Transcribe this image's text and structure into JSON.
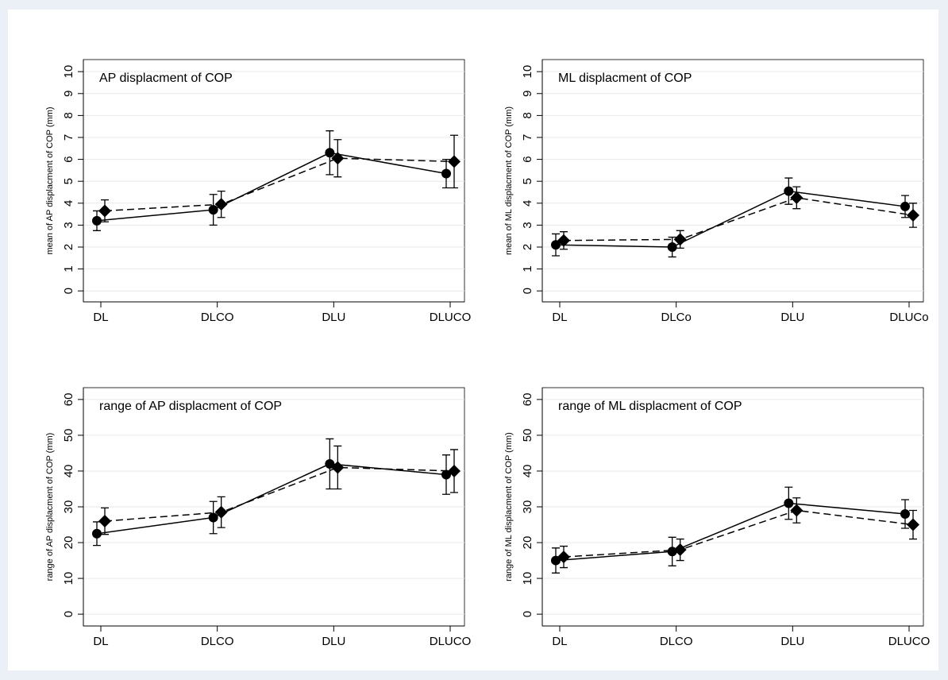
{
  "chart_data": [
    {
      "type": "line",
      "title": "AP displacment of COP",
      "y_label": "mean of  AP displacment of COP (mm)",
      "categories": [
        "DL",
        "DLCO",
        "DLU",
        "DLUCO"
      ],
      "series": [
        {
          "color": "#000000",
          "marker": "circle",
          "dashed": false,
          "values": [
            3.2,
            3.7,
            6.3,
            5.35
          ],
          "errors": [
            0.45,
            0.7,
            1.0,
            0.65
          ]
        },
        {
          "color": "#000000",
          "marker": "diamond",
          "dashed": true,
          "values": [
            3.65,
            3.95,
            6.05,
            5.9
          ],
          "errors": [
            0.5,
            0.6,
            0.85,
            1.2
          ]
        }
      ],
      "ylim": [
        -0.5,
        10.55
      ],
      "yticks": [
        0,
        1,
        2,
        3,
        4,
        5,
        6,
        7,
        8,
        9,
        10
      ],
      "grid": true
    },
    {
      "type": "line",
      "title": "ML displacment of COP",
      "y_label": "mean of  ML displacment of COP (mm)",
      "categories": [
        "DL",
        "DLCo",
        "DLU",
        "DLUCo"
      ],
      "series": [
        {
          "color": "#000000",
          "marker": "circle",
          "dashed": false,
          "values": [
            2.1,
            2.0,
            4.55,
            3.85
          ],
          "errors": [
            0.5,
            0.45,
            0.6,
            0.5
          ]
        },
        {
          "color": "#000000",
          "marker": "diamond",
          "dashed": true,
          "values": [
            2.3,
            2.35,
            4.25,
            3.45
          ],
          "errors": [
            0.4,
            0.4,
            0.5,
            0.55
          ]
        }
      ],
      "ylim": [
        -0.5,
        10.55
      ],
      "yticks": [
        0,
        1,
        2,
        3,
        4,
        5,
        6,
        7,
        8,
        9,
        10
      ],
      "grid": true
    },
    {
      "type": "line",
      "title": "range of  AP displacment of COP",
      "y_label": "range of  AP displacment of COP (mm)",
      "categories": [
        "DL",
        "DLCO",
        "DLU",
        "DLUCO"
      ],
      "series": [
        {
          "color": "#000000",
          "marker": "circle",
          "dashed": false,
          "values": [
            22.5,
            27,
            42,
            39
          ],
          "errors": [
            3.3,
            4.5,
            7,
            5.5
          ]
        },
        {
          "color": "#000000",
          "marker": "diamond",
          "dashed": true,
          "values": [
            26,
            28.5,
            41,
            40
          ],
          "errors": [
            3.7,
            4.3,
            6,
            6
          ]
        }
      ],
      "ylim": [
        -3.3,
        63.3
      ],
      "yticks": [
        0,
        10,
        20,
        30,
        40,
        50,
        60
      ],
      "grid": true
    },
    {
      "type": "line",
      "title": "range of  ML displacment of COP",
      "y_label": "range of  ML displacment of COP (mm)",
      "categories": [
        "DL",
        "DLCO",
        "DLU",
        "DLUCO"
      ],
      "series": [
        {
          "color": "#000000",
          "marker": "circle",
          "dashed": false,
          "values": [
            15,
            17.5,
            31,
            28
          ],
          "errors": [
            3.5,
            4,
            4.5,
            4
          ]
        },
        {
          "color": "#000000",
          "marker": "diamond",
          "dashed": true,
          "values": [
            16,
            18,
            29,
            25
          ],
          "errors": [
            3,
            3,
            3.5,
            4
          ]
        }
      ],
      "ylim": [
        -3.3,
        63.3
      ],
      "yticks": [
        0,
        10,
        20,
        30,
        40,
        50,
        60
      ],
      "grid": true
    }
  ]
}
